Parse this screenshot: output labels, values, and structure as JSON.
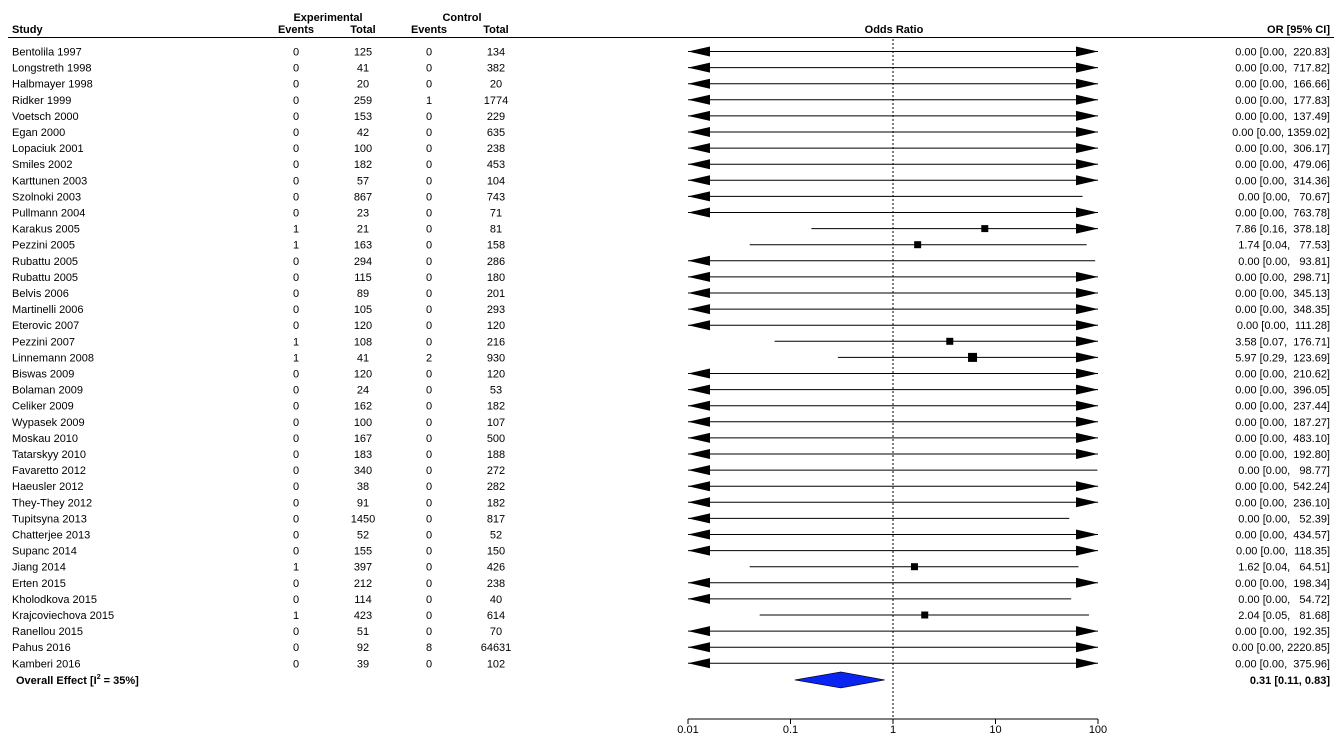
{
  "chart_data": {
    "type": "forest",
    "headers": {
      "study": "Study",
      "experimental": "Experimental",
      "control": "Control",
      "events": "Events",
      "total": "Total",
      "odds_ratio": "Odds Ratio",
      "or_ci": "OR [95% CI]"
    },
    "x_axis": {
      "scale": "log",
      "ticks": [
        0.01,
        0.1,
        1,
        10,
        100
      ],
      "tick_labels": [
        "0.01",
        "0.1",
        "1",
        "10",
        "100"
      ],
      "reference_line": 1
    },
    "studies": [
      {
        "name": "Bentolila 1997",
        "e_events": "0",
        "e_total": "125",
        "c_events": "0",
        "c_total": "134",
        "or": 0.0,
        "lo": 0.0,
        "hi": 220.83,
        "or_text": "0.00 [0.00,  220.83]"
      },
      {
        "name": "Longstreth 1998",
        "e_events": "0",
        "e_total": "41",
        "c_events": "0",
        "c_total": "382",
        "or": 0.0,
        "lo": 0.0,
        "hi": 717.82,
        "or_text": "0.00 [0.00,  717.82]"
      },
      {
        "name": "Halbmayer 1998",
        "e_events": "0",
        "e_total": "20",
        "c_events": "0",
        "c_total": "20",
        "or": 0.0,
        "lo": 0.0,
        "hi": 166.66,
        "or_text": "0.00 [0.00,  166.66]"
      },
      {
        "name": "Ridker 1999",
        "e_events": "0",
        "e_total": "259",
        "c_events": "1",
        "c_total": "1774",
        "or": 0.0,
        "lo": 0.0,
        "hi": 177.83,
        "or_text": "0.00 [0.00,  177.83]"
      },
      {
        "name": "Voetsch 2000",
        "e_events": "0",
        "e_total": "153",
        "c_events": "0",
        "c_total": "229",
        "or": 0.0,
        "lo": 0.0,
        "hi": 137.49,
        "or_text": "0.00 [0.00,  137.49]"
      },
      {
        "name": "Egan 2000",
        "e_events": "0",
        "e_total": "42",
        "c_events": "0",
        "c_total": "635",
        "or": 0.0,
        "lo": 0.0,
        "hi": 1359.02,
        "or_text": "0.00 [0.00, 1359.02]"
      },
      {
        "name": "Lopaciuk 2001",
        "e_events": "0",
        "e_total": "100",
        "c_events": "0",
        "c_total": "238",
        "or": 0.0,
        "lo": 0.0,
        "hi": 306.17,
        "or_text": "0.00 [0.00,  306.17]"
      },
      {
        "name": "Smiles 2002",
        "e_events": "0",
        "e_total": "182",
        "c_events": "0",
        "c_total": "453",
        "or": 0.0,
        "lo": 0.0,
        "hi": 479.06,
        "or_text": "0.00 [0.00,  479.06]"
      },
      {
        "name": "Karttunen 2003",
        "e_events": "0",
        "e_total": "57",
        "c_events": "0",
        "c_total": "104",
        "or": 0.0,
        "lo": 0.0,
        "hi": 314.36,
        "or_text": "0.00 [0.00,  314.36]"
      },
      {
        "name": "Szolnoki 2003",
        "e_events": "0",
        "e_total": "867",
        "c_events": "0",
        "c_total": "743",
        "or": 0.0,
        "lo": 0.0,
        "hi": 70.67,
        "or_text": "0.00 [0.00,   70.67]"
      },
      {
        "name": "Pullmann 2004",
        "e_events": "0",
        "e_total": "23",
        "c_events": "0",
        "c_total": "71",
        "or": 0.0,
        "lo": 0.0,
        "hi": 763.78,
        "or_text": "0.00 [0.00,  763.78]"
      },
      {
        "name": "Karakus 2005",
        "e_events": "1",
        "e_total": "21",
        "c_events": "0",
        "c_total": "81",
        "or": 7.86,
        "lo": 0.16,
        "hi": 378.18,
        "or_text": "7.86 [0.16,  378.18]"
      },
      {
        "name": "Pezzini  2005",
        "e_events": "1",
        "e_total": "163",
        "c_events": "0",
        "c_total": "158",
        "or": 1.74,
        "lo": 0.04,
        "hi": 77.53,
        "or_text": "1.74 [0.04,   77.53]"
      },
      {
        "name": "Rubattu 2005",
        "e_events": "0",
        "e_total": "294",
        "c_events": "0",
        "c_total": "286",
        "or": 0.0,
        "lo": 0.0,
        "hi": 93.81,
        "or_text": "0.00 [0.00,   93.81]"
      },
      {
        "name": "Rubattu 2005",
        "e_events": "0",
        "e_total": "115",
        "c_events": "0",
        "c_total": "180",
        "or": 0.0,
        "lo": 0.0,
        "hi": 298.71,
        "or_text": "0.00 [0.00,  298.71]"
      },
      {
        "name": "Belvis 2006",
        "e_events": "0",
        "e_total": "89",
        "c_events": "0",
        "c_total": "201",
        "or": 0.0,
        "lo": 0.0,
        "hi": 345.13,
        "or_text": "0.00 [0.00,  345.13]"
      },
      {
        "name": "Martinelli 2006",
        "e_events": "0",
        "e_total": "105",
        "c_events": "0",
        "c_total": "293",
        "or": 0.0,
        "lo": 0.0,
        "hi": 348.35,
        "or_text": "0.00 [0.00,  348.35]"
      },
      {
        "name": "Eterovic 2007",
        "e_events": "0",
        "e_total": "120",
        "c_events": "0",
        "c_total": "120",
        "or": 0.0,
        "lo": 0.0,
        "hi": 111.28,
        "or_text": "0.00 [0.00,  111.28]"
      },
      {
        "name": "Pezzini  2007",
        "e_events": "1",
        "e_total": "108",
        "c_events": "0",
        "c_total": "216",
        "or": 3.58,
        "lo": 0.07,
        "hi": 176.71,
        "or_text": "3.58 [0.07,  176.71]"
      },
      {
        "name": "Linnemann 2008",
        "e_events": "1",
        "e_total": "41",
        "c_events": "2",
        "c_total": "930",
        "or": 5.97,
        "lo": 0.29,
        "hi": 123.69,
        "or_text": "5.97 [0.29,  123.69]"
      },
      {
        "name": "Biswas 2009",
        "e_events": "0",
        "e_total": "120",
        "c_events": "0",
        "c_total": "120",
        "or": 0.0,
        "lo": 0.0,
        "hi": 210.62,
        "or_text": "0.00 [0.00,  210.62]"
      },
      {
        "name": "Bolaman 2009",
        "e_events": "0",
        "e_total": "24",
        "c_events": "0",
        "c_total": "53",
        "or": 0.0,
        "lo": 0.0,
        "hi": 396.05,
        "or_text": "0.00 [0.00,  396.05]"
      },
      {
        "name": "Celiker 2009",
        "e_events": "0",
        "e_total": "162",
        "c_events": "0",
        "c_total": "182",
        "or": 0.0,
        "lo": 0.0,
        "hi": 237.44,
        "or_text": "0.00 [0.00,  237.44]"
      },
      {
        "name": "Wypasek 2009",
        "e_events": "0",
        "e_total": "100",
        "c_events": "0",
        "c_total": "107",
        "or": 0.0,
        "lo": 0.0,
        "hi": 187.27,
        "or_text": "0.00 [0.00,  187.27]"
      },
      {
        "name": "Moskau 2010",
        "e_events": "0",
        "e_total": "167",
        "c_events": "0",
        "c_total": "500",
        "or": 0.0,
        "lo": 0.0,
        "hi": 483.1,
        "or_text": "0.00 [0.00,  483.10]"
      },
      {
        "name": "Tatarskyy 2010",
        "e_events": "0",
        "e_total": "183",
        "c_events": "0",
        "c_total": "188",
        "or": 0.0,
        "lo": 0.0,
        "hi": 192.8,
        "or_text": "0.00 [0.00,  192.80]"
      },
      {
        "name": "Favaretto 2012",
        "e_events": "0",
        "e_total": "340",
        "c_events": "0",
        "c_total": "272",
        "or": 0.0,
        "lo": 0.0,
        "hi": 98.77,
        "or_text": "0.00 [0.00,   98.77]"
      },
      {
        "name": "Haeusler 2012",
        "e_events": "0",
        "e_total": "38",
        "c_events": "0",
        "c_total": "282",
        "or": 0.0,
        "lo": 0.0,
        "hi": 542.24,
        "or_text": "0.00 [0.00,  542.24]"
      },
      {
        "name": "They-They 2012",
        "e_events": "0",
        "e_total": "91",
        "c_events": "0",
        "c_total": "182",
        "or": 0.0,
        "lo": 0.0,
        "hi": 236.1,
        "or_text": "0.00 [0.00,  236.10]"
      },
      {
        "name": "Tupitsyna 2013",
        "e_events": "0",
        "e_total": "1450",
        "c_events": "0",
        "c_total": "817",
        "or": 0.0,
        "lo": 0.0,
        "hi": 52.39,
        "or_text": "0.00 [0.00,   52.39]"
      },
      {
        "name": "Chatterjee 2013",
        "e_events": "0",
        "e_total": "52",
        "c_events": "0",
        "c_total": "52",
        "or": 0.0,
        "lo": 0.0,
        "hi": 434.57,
        "or_text": "0.00 [0.00,  434.57]"
      },
      {
        "name": "Supanc 2014",
        "e_events": "0",
        "e_total": "155",
        "c_events": "0",
        "c_total": "150",
        "or": 0.0,
        "lo": 0.0,
        "hi": 118.35,
        "or_text": "0.00 [0.00,  118.35]"
      },
      {
        "name": "Jiang 2014",
        "e_events": "1",
        "e_total": "397",
        "c_events": "0",
        "c_total": "426",
        "or": 1.62,
        "lo": 0.04,
        "hi": 64.51,
        "or_text": "1.62 [0.04,   64.51]"
      },
      {
        "name": "Erten 2015",
        "e_events": "0",
        "e_total": "212",
        "c_events": "0",
        "c_total": "238",
        "or": 0.0,
        "lo": 0.0,
        "hi": 198.34,
        "or_text": "0.00 [0.00,  198.34]"
      },
      {
        "name": "Kholodkova 2015",
        "e_events": "0",
        "e_total": "114",
        "c_events": "0",
        "c_total": "40",
        "or": 0.0,
        "lo": 0.0,
        "hi": 54.72,
        "or_text": "0.00 [0.00,   54.72]"
      },
      {
        "name": "Krajcoviechova 2015",
        "e_events": "1",
        "e_total": "423",
        "c_events": "0",
        "c_total": "614",
        "or": 2.04,
        "lo": 0.05,
        "hi": 81.68,
        "or_text": "2.04 [0.05,   81.68]"
      },
      {
        "name": "Ranellou 2015",
        "e_events": "0",
        "e_total": "51",
        "c_events": "0",
        "c_total": "70",
        "or": 0.0,
        "lo": 0.0,
        "hi": 192.35,
        "or_text": "0.00 [0.00,  192.35]"
      },
      {
        "name": "Pahus 2016",
        "e_events": "0",
        "e_total": "92",
        "c_events": "8",
        "c_total": "64631",
        "or": 0.0,
        "lo": 0.0,
        "hi": 2220.85,
        "or_text": "0.00 [0.00, 2220.85]"
      },
      {
        "name": "Kamberi 2016",
        "e_events": "0",
        "e_total": "39",
        "c_events": "0",
        "c_total": "102",
        "or": 0.0,
        "lo": 0.0,
        "hi": 375.96,
        "or_text": "0.00 [0.00,  375.96]"
      }
    ],
    "overall": {
      "label_prefix": "Overall Effect [I",
      "label_sup": "2",
      "label_suffix": " = 35%]",
      "or": 0.31,
      "lo": 0.11,
      "hi": 0.83,
      "or_text": "0.31 [0.11, 0.83]",
      "diamond_color": "#0a24f2"
    }
  }
}
